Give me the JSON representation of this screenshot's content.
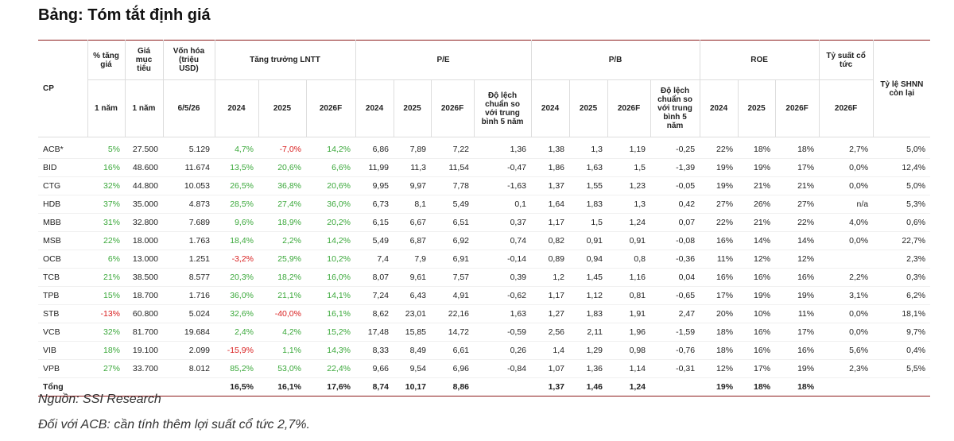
{
  "title": "Bảng: Tóm tắt định giá",
  "table": {
    "header_row1": [
      "CP",
      "% tăng giá",
      "Giá mục tiêu",
      "Vốn hóa (triệu USD)",
      "Tăng trưởng LNTT",
      "P/E",
      "P/B",
      "ROE",
      "Tỷ suất cổ tức",
      "Tỷ lệ SHNN còn lại"
    ],
    "header_row2": [
      "1 năm",
      "1 năm",
      "6/5/26",
      "2024",
      "2025",
      "2026F",
      "2024",
      "2025",
      "2026F",
      "Độ lệch chuẩn so với trung bình 5 năm",
      "2024",
      "2025",
      "2026F",
      "Độ lệch chuẩn so với trung bình 5 năm",
      "2024",
      "2025",
      "2026F",
      "2026F"
    ],
    "rows": [
      [
        "ACB*",
        "5%",
        "27.500",
        "5.129",
        "4,7%",
        "-7,0%",
        "14,2%",
        "6,86",
        "7,89",
        "7,22",
        "1,36",
        "1,38",
        "1,3",
        "1,19",
        "-0,25",
        "22%",
        "18%",
        "18%",
        "2,7%",
        "5,0%"
      ],
      [
        "BID",
        "16%",
        "48.600",
        "11.674",
        "13,5%",
        "20,6%",
        "6,6%",
        "11,99",
        "11,3",
        "11,54",
        "-0,47",
        "1,86",
        "1,63",
        "1,5",
        "-1,39",
        "19%",
        "19%",
        "17%",
        "0,0%",
        "12,4%"
      ],
      [
        "CTG",
        "32%",
        "44.800",
        "10.053",
        "26,5%",
        "36,8%",
        "20,6%",
        "9,95",
        "9,97",
        "7,78",
        "-1,63",
        "1,37",
        "1,55",
        "1,23",
        "-0,05",
        "19%",
        "21%",
        "21%",
        "0,0%",
        "5,0%"
      ],
      [
        "HDB",
        "37%",
        "35.000",
        "4.873",
        "28,5%",
        "27,4%",
        "36,0%",
        "6,73",
        "8,1",
        "5,49",
        "0,1",
        "1,64",
        "1,83",
        "1,3",
        "0,42",
        "27%",
        "26%",
        "27%",
        "n/a",
        "5,3%"
      ],
      [
        "MBB",
        "31%",
        "32.800",
        "7.689",
        "9,6%",
        "18,9%",
        "20,2%",
        "6,15",
        "6,67",
        "6,51",
        "0,37",
        "1,17",
        "1,5",
        "1,24",
        "0,07",
        "22%",
        "21%",
        "22%",
        "4,0%",
        "0,6%"
      ],
      [
        "MSB",
        "22%",
        "18.000",
        "1.763",
        "18,4%",
        "2,2%",
        "14,2%",
        "5,49",
        "6,87",
        "6,92",
        "0,74",
        "0,82",
        "0,91",
        "0,91",
        "-0,08",
        "16%",
        "14%",
        "14%",
        "0,0%",
        "22,7%"
      ],
      [
        "OCB",
        "6%",
        "13.000",
        "1.251",
        "-3,2%",
        "25,9%",
        "10,2%",
        "7,4",
        "7,9",
        "6,91",
        "-0,14",
        "0,89",
        "0,94",
        "0,8",
        "-0,36",
        "11%",
        "12%",
        "12%",
        null,
        "2,3%"
      ],
      [
        "TCB",
        "21%",
        "38.500",
        "8.577",
        "20,3%",
        "18,2%",
        "16,0%",
        "8,07",
        "9,61",
        "7,57",
        "0,39",
        "1,2",
        "1,45",
        "1,16",
        "0,04",
        "16%",
        "16%",
        "16%",
        "2,2%",
        "0,3%"
      ],
      [
        "TPB",
        "15%",
        "18.700",
        "1.716",
        "36,0%",
        "21,1%",
        "14,1%",
        "7,24",
        "6,43",
        "4,91",
        "-0,62",
        "1,17",
        "1,12",
        "0,81",
        "-0,65",
        "17%",
        "19%",
        "19%",
        "3,1%",
        "6,2%"
      ],
      [
        "STB",
        "-13%",
        "60.800",
        "5.024",
        "32,6%",
        "-40,0%",
        "16,1%",
        "8,62",
        "23,01",
        "22,16",
        "1,63",
        "1,27",
        "1,83",
        "1,91",
        "2,47",
        "20%",
        "10%",
        "11%",
        "0,0%",
        "18,1%"
      ],
      [
        "VCB",
        "32%",
        "81.700",
        "19.684",
        "2,4%",
        "4,2%",
        "15,2%",
        "17,48",
        "15,85",
        "14,72",
        "-0,59",
        "2,56",
        "2,11",
        "1,96",
        "-1,59",
        "18%",
        "16%",
        "17%",
        "0,0%",
        "9,7%"
      ],
      [
        "VIB",
        "18%",
        "19.100",
        "2.099",
        "-15,9%",
        "1,1%",
        "14,3%",
        "8,33",
        "8,49",
        "6,61",
        "0,26",
        "1,4",
        "1,29",
        "0,98",
        "-0,76",
        "18%",
        "16%",
        "16%",
        "5,6%",
        "0,4%"
      ],
      [
        "VPB",
        "27%",
        "33.700",
        "8.012",
        "85,2%",
        "53,0%",
        "22,4%",
        "9,66",
        "9,54",
        "6,96",
        "-0,84",
        "1,07",
        "1,36",
        "1,14",
        "-0,31",
        "12%",
        "17%",
        "19%",
        "2,3%",
        "5,5%"
      ]
    ],
    "total": [
      "Tổng",
      null,
      null,
      null,
      "16,5%",
      "16,1%",
      "17,6%",
      "8,74",
      "10,17",
      "8,86",
      null,
      "1,37",
      "1,46",
      "1,24",
      null,
      "19%",
      "18%",
      "18%",
      null,
      null
    ]
  },
  "source": "Nguồn: SSI Research",
  "note": "Đối với ACB: cần tính thêm lợi suất cổ tức 2,7%."
}
